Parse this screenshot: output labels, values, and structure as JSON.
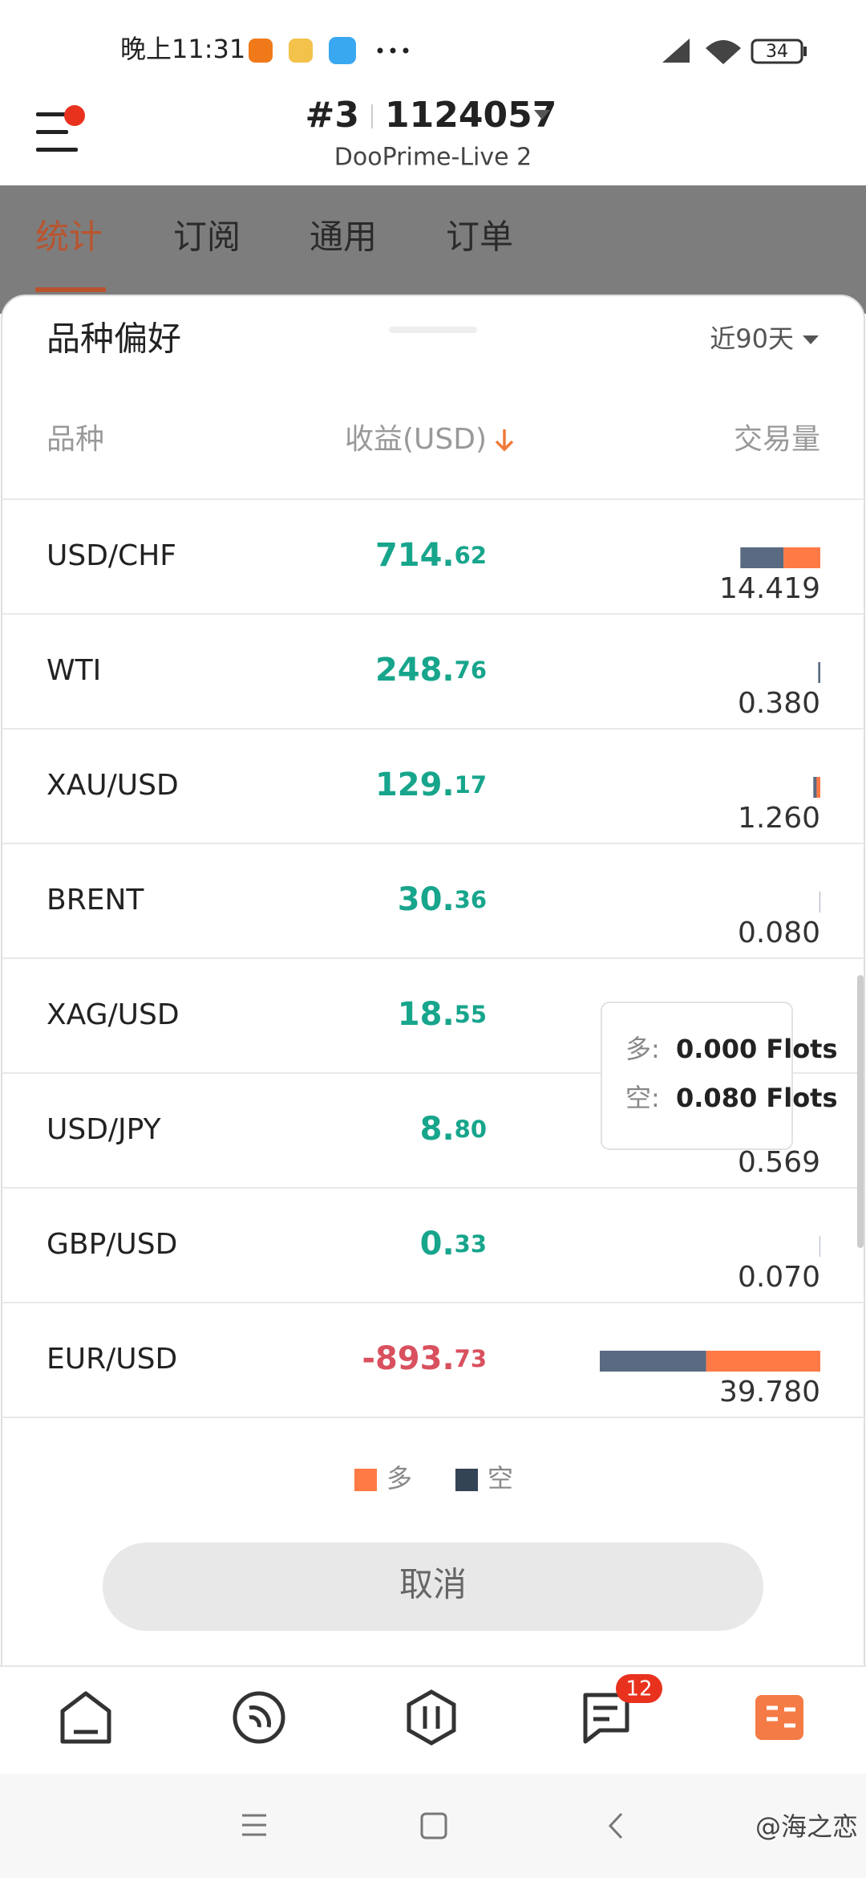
{
  "status_bar": {
    "time": "晚上11:31",
    "battery": "34"
  },
  "header": {
    "account_number": "#3",
    "account_id": "1124057",
    "server": "DooPrime-Live 2"
  },
  "tabs": [
    "统计",
    "订阅",
    "通用",
    "订单"
  ],
  "sheet": {
    "title": "品种偏好",
    "period": "近90天",
    "columns": [
      "品种",
      "收益(USD)",
      "交易量"
    ],
    "rows": [
      {
        "symbol": "USD/CHF",
        "profit": [
          "714.",
          "62"
        ],
        "volume": "14.419",
        "short": 7.8,
        "long": 6.619
      },
      {
        "symbol": "WTI",
        "profit": [
          "248.",
          "76"
        ],
        "volume": "0.380",
        "short": 0.38,
        "long": 0
      },
      {
        "symbol": "XAU/USD",
        "profit": [
          "129.",
          "17"
        ],
        "volume": "1.260",
        "short": 0.6,
        "long": 0.66
      },
      {
        "symbol": "BRENT",
        "profit": [
          "30.",
          "36"
        ],
        "volume": "0.080",
        "short": 0.08,
        "long": 0
      },
      {
        "symbol": "XAG/USD",
        "profit": [
          "18.",
          "55"
        ],
        "volume": null,
        "short": null,
        "long": null
      },
      {
        "symbol": "USD/JPY",
        "profit": [
          "8.",
          "80"
        ],
        "volume": "0.569",
        "short": null,
        "long": null
      },
      {
        "symbol": "GBP/USD",
        "profit": [
          "0.",
          "33"
        ],
        "volume": "0.070",
        "short": 0.07,
        "long": 0
      },
      {
        "symbol": "EUR/USD",
        "profit": [
          "-893.",
          "73"
        ],
        "volume": "39.780",
        "short": 19.2,
        "long": 20.58
      }
    ],
    "tooltip": {
      "long_label": "多:",
      "long_value": "0.000 Flots",
      "short_label": "空:",
      "short_value": "0.080 Flots"
    },
    "legend": [
      "多",
      "空"
    ],
    "cancel": "取消"
  },
  "nav": {
    "badge": "12"
  },
  "watermark": "@海之恋"
}
